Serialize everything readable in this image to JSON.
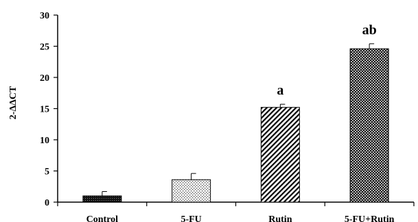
{
  "chart_data": {
    "type": "bar",
    "title": "",
    "xlabel": "",
    "ylabel": "2-ΔΔCT",
    "ylim": [
      0,
      30
    ],
    "yticks": [
      0,
      5,
      10,
      15,
      20,
      25,
      30
    ],
    "categories": [
      "Control",
      "5-FU",
      "Rutin",
      "5-FU+Rutin"
    ],
    "values": [
      1.0,
      3.6,
      15.2,
      24.6
    ],
    "errors": [
      0.7,
      1.0,
      0.5,
      0.8
    ],
    "annotations": [
      "",
      "",
      "a",
      "ab"
    ],
    "patterns": [
      "dense-dots",
      "light-dots",
      "diagonal-lines",
      "crosshatch"
    ],
    "grid": false,
    "legend": "none",
    "colors": {
      "bar_fill": "#ffffff",
      "ink": "#000000"
    }
  }
}
